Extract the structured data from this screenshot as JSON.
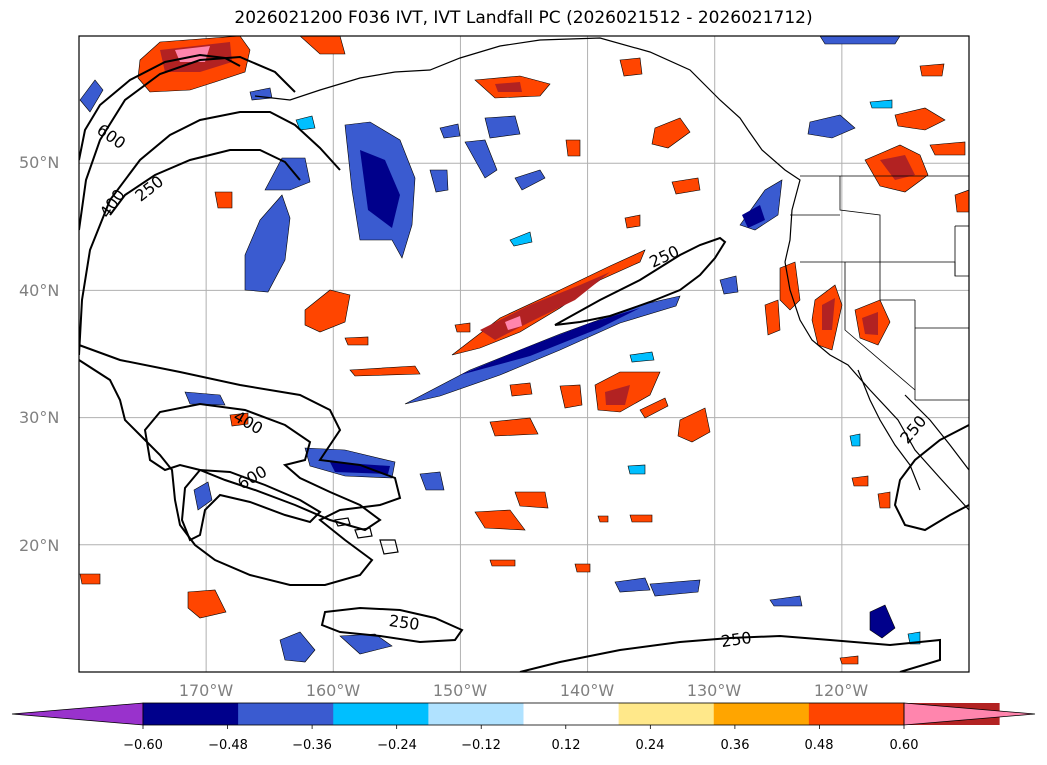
{
  "title": "2026021200 F036 IVT, IVT Landfall PC (2026021512 - 2026021712)",
  "chart_data": {
    "type": "contour-map",
    "title": "2026021200 F036 IVT, IVT Landfall PC (2026021512 - 2026021712)",
    "projection": "lon-lat",
    "xlim": [
      -180,
      -110
    ],
    "ylim": [
      10,
      60
    ],
    "lat_ticks": [
      "50°N",
      "40°N",
      "30°N",
      "20°N"
    ],
    "lon_ticks": [
      "170°W",
      "160°W",
      "150°W",
      "140°W",
      "130°W",
      "120°W"
    ],
    "grid": true,
    "ivt_contour_levels": [
      250,
      400,
      600
    ],
    "contour_labels": [
      {
        "text": "600",
        "lon": -171,
        "lat": 51.5
      },
      {
        "text": "400",
        "lon": -170.5,
        "lat": 47.5
      },
      {
        "text": "250",
        "lon": -168.5,
        "lat": 48.5
      },
      {
        "text": "250",
        "lon": -140.5,
        "lat": 42.5
      },
      {
        "text": "400",
        "lon": -161.5,
        "lat": 29.3
      },
      {
        "text": "600",
        "lon": -161.5,
        "lat": 25.5
      },
      {
        "text": "250",
        "lon": -151,
        "lat": 13.8
      },
      {
        "text": "250",
        "lon": -132.5,
        "lat": 12.6
      },
      {
        "text": "250",
        "lon": -114.5,
        "lat": 28.5
      }
    ],
    "colorbar": {
      "ticks": [
        "−0.60",
        "−0.48",
        "−0.36",
        "−0.24",
        "−0.12",
        "0.12",
        "0.24",
        "0.36",
        "0.48",
        "0.60"
      ],
      "levels": [
        -0.6,
        -0.48,
        -0.36,
        -0.24,
        -0.12,
        0.12,
        0.24,
        0.36,
        0.48,
        0.6
      ],
      "colors": [
        "#9932cc",
        "#00008b",
        "#3a5bd0",
        "#00bfff",
        "#b0e2ff",
        "#ffffff",
        "#ffe88a",
        "#ffa500",
        "#ff4500",
        "#b22222",
        "#ff85ad"
      ],
      "extend": "both"
    }
  }
}
